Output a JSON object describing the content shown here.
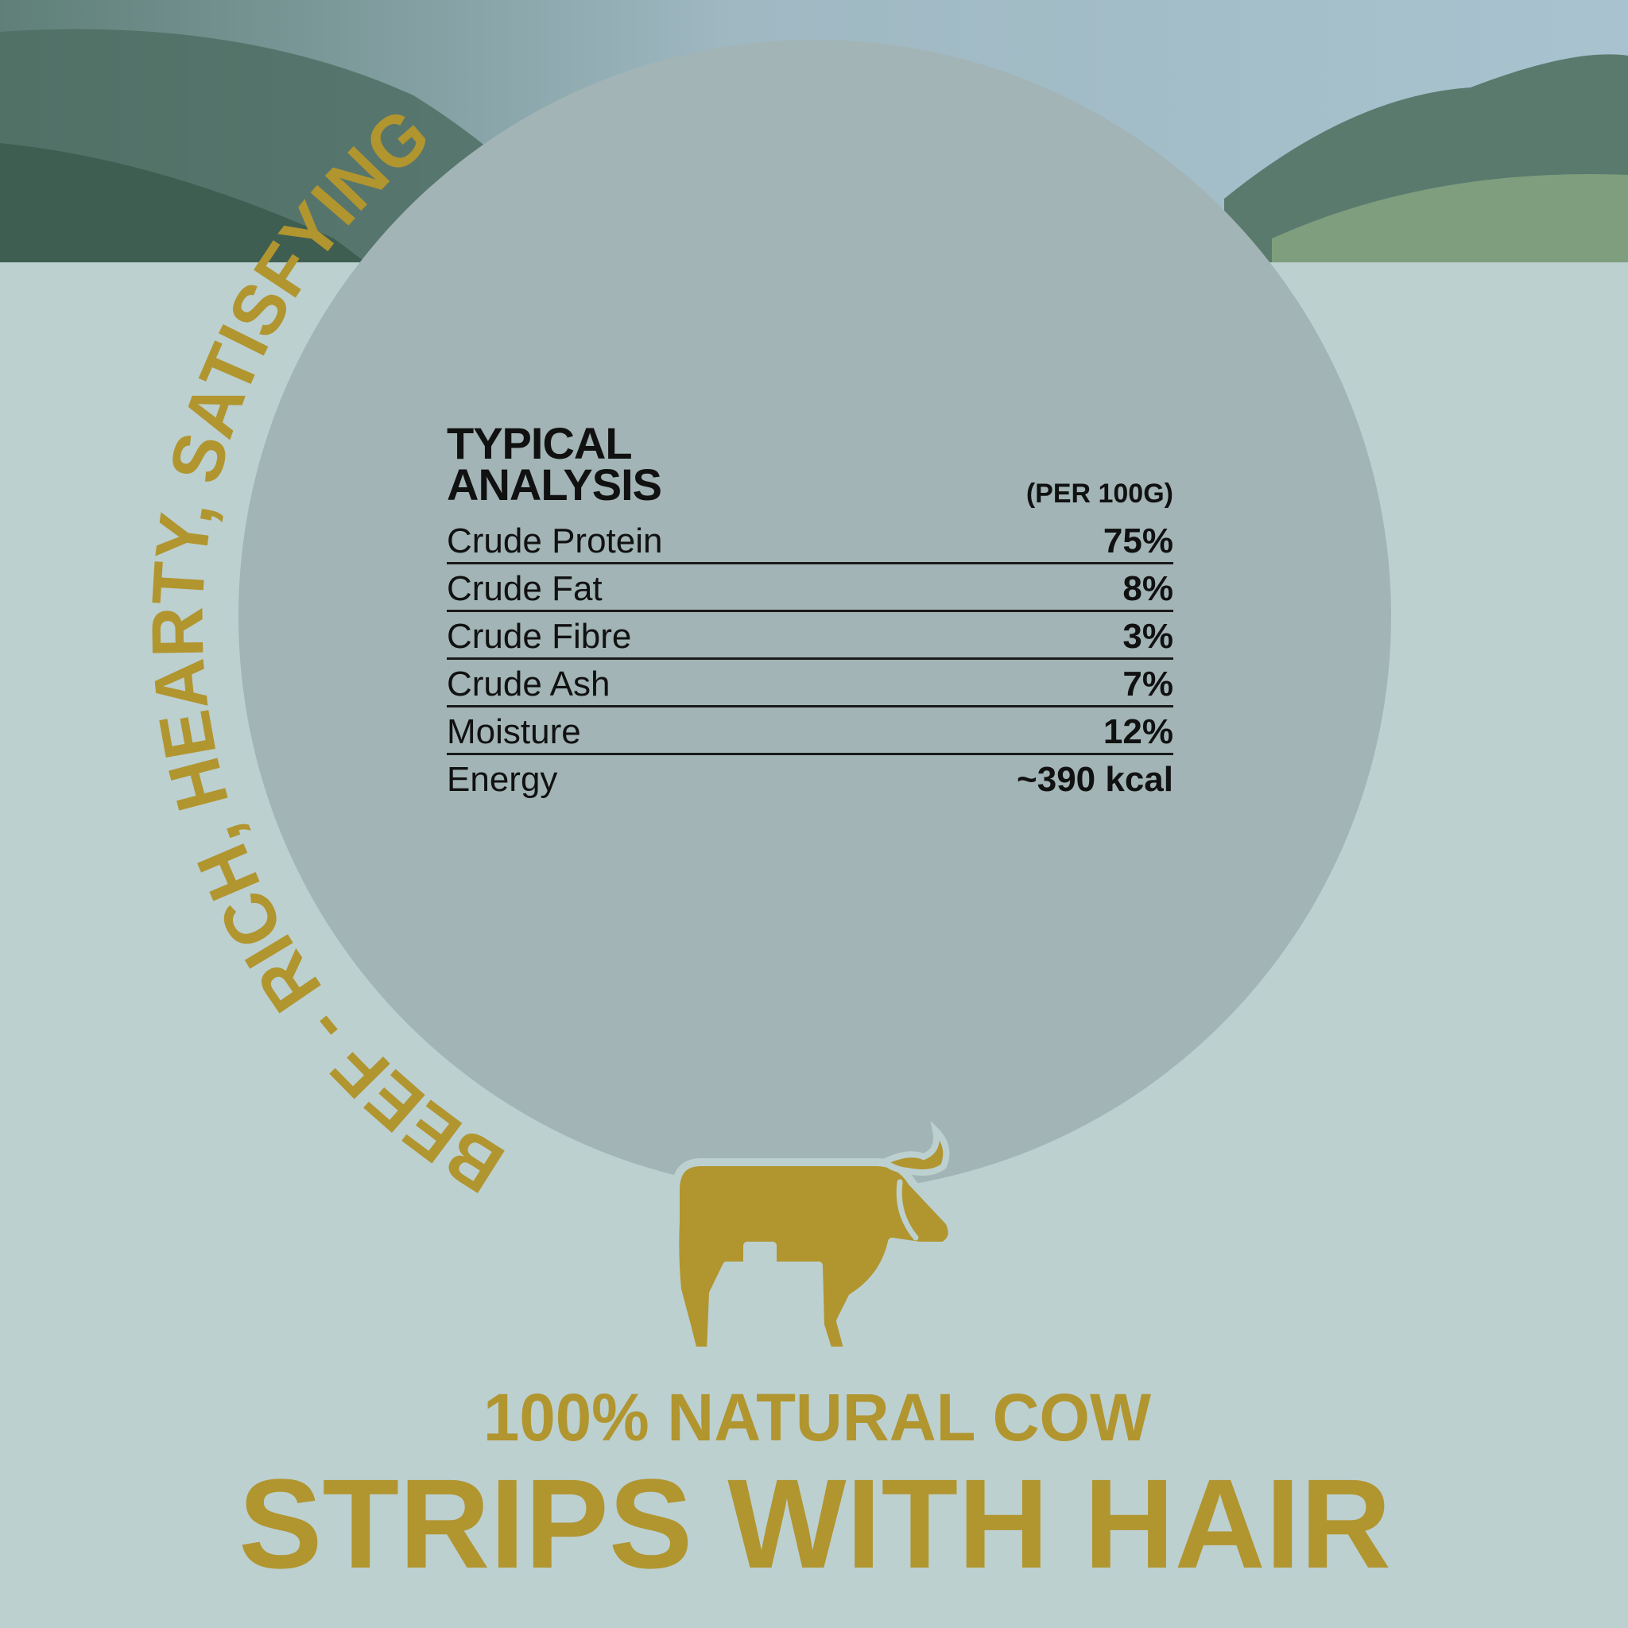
{
  "colors": {
    "background": "#bcd0d0",
    "circle": "#a2b4b5",
    "accent_gold": "#b1952f",
    "text": "#111111"
  },
  "arc_tagline": "BEEF - RICH, HEARTY, SATISFYING",
  "analysis": {
    "title_line1": "TYPICAL",
    "title_line2": "ANALYSIS",
    "unit": "(PER 100G)",
    "rows": [
      {
        "label": "Crude Protein",
        "value": "75%"
      },
      {
        "label": "Crude Fat",
        "value": "8%"
      },
      {
        "label": "Crude Fibre",
        "value": "3%"
      },
      {
        "label": "Crude Ash",
        "value": "7%"
      },
      {
        "label": "Moisture",
        "value": "12%"
      },
      {
        "label": "Energy",
        "value": "~390 kcal"
      }
    ]
  },
  "icon": "cow-icon",
  "product": {
    "subtitle": "100% NATURAL COW",
    "title": "STRIPS WITH HAIR"
  }
}
